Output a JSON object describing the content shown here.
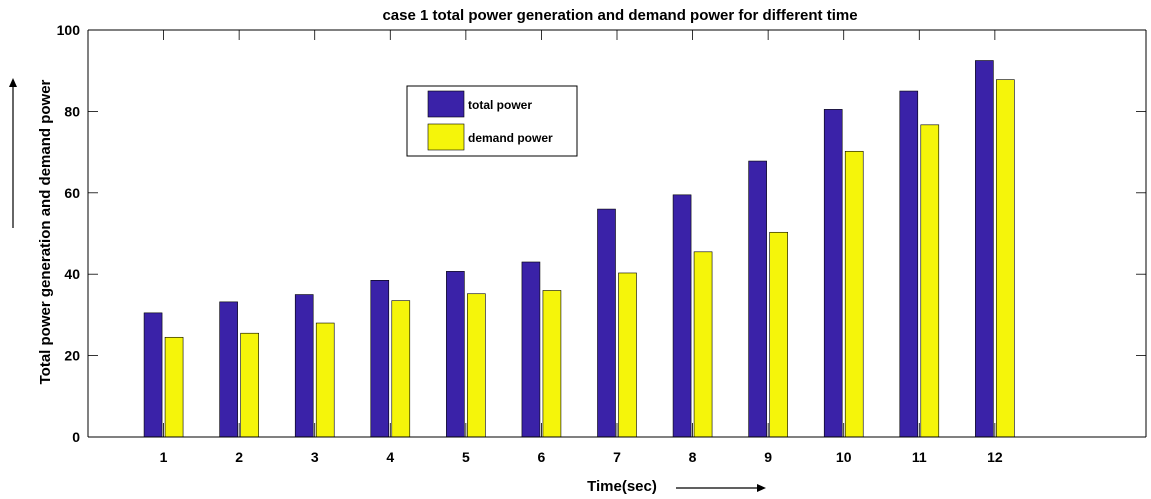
{
  "chart_data": {
    "type": "bar",
    "title": "case 1 total power generation and demand power for different time",
    "xlabel": "Time(sec)",
    "ylabel": "Total power generation and demand power",
    "categories": [
      "1",
      "2",
      "3",
      "4",
      "5",
      "6",
      "7",
      "8",
      "9",
      "10",
      "11",
      "12"
    ],
    "series": [
      {
        "name": "total power",
        "color": "#3a22a8",
        "values": [
          30.5,
          33.2,
          35.0,
          38.5,
          40.7,
          43.0,
          56.0,
          59.5,
          67.8,
          80.5,
          85.0,
          92.5
        ]
      },
      {
        "name": "demand power",
        "color": "#f5f50a",
        "values": [
          24.5,
          25.5,
          28.0,
          33.5,
          35.2,
          36.0,
          40.3,
          45.5,
          50.3,
          70.2,
          76.7,
          87.8
        ]
      }
    ],
    "ylim": [
      0,
      100
    ],
    "xlim": [
      0,
      14
    ],
    "yticks": [
      0,
      20,
      40,
      60,
      80,
      100
    ],
    "grid": false,
    "legend_position": "top-center"
  }
}
